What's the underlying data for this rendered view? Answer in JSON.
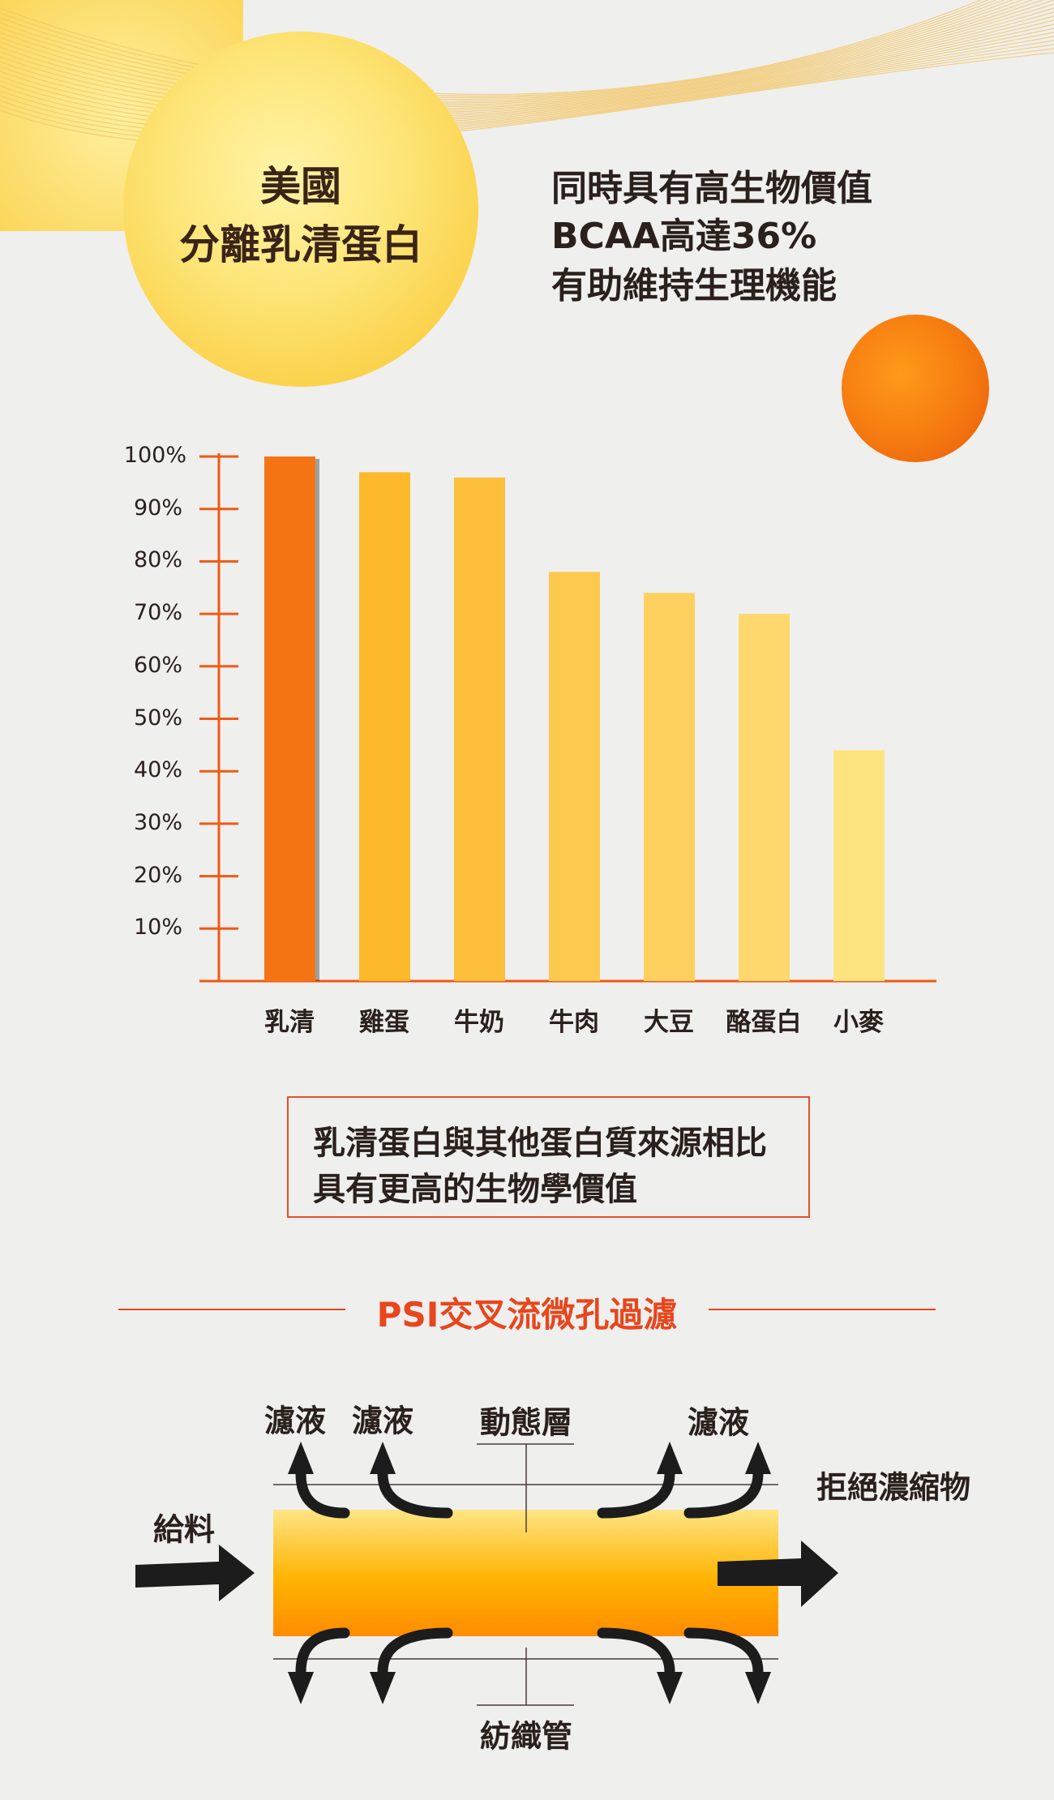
{
  "header": {
    "title_lines": [
      "美國",
      "分離乳清蛋白"
    ],
    "claims": [
      "同時具有高生物價值",
      "BCAA高達36%",
      "有助維持生理機能"
    ]
  },
  "colors": {
    "accent": "#e8461c",
    "whey_bar": "#f47414",
    "text": "#2a201c"
  },
  "chart_data": {
    "type": "bar",
    "title": "",
    "xlabel": "",
    "ylabel": "",
    "categories": [
      "乳清",
      "雞蛋",
      "牛奶",
      "牛肉",
      "大豆",
      "酪蛋白",
      "小麥"
    ],
    "values": [
      100,
      97,
      96,
      78,
      74,
      70,
      44
    ],
    "bar_colors": [
      "#f47414",
      "#fdb92a",
      "#fdbf3c",
      "#fec94f",
      "#fed05f",
      "#fed86c",
      "#fee381"
    ],
    "ylim": [
      0,
      100
    ],
    "yticks": [
      "10%",
      "20%",
      "30%",
      "40%",
      "50%",
      "60%",
      "70%",
      "80%",
      "90%",
      "100%"
    ],
    "grid": false
  },
  "note": {
    "lines": [
      "乳清蛋白與其他蛋白質來源相比",
      "具有更高的生物學價值"
    ]
  },
  "section": {
    "title": "PSI交叉流微孔過濾"
  },
  "diagram": {
    "filtrate_1": "濾液",
    "filtrate_2": "濾液",
    "dynamic_layer": "動態層",
    "filtrate_3": "濾液",
    "retentate": "拒絕濃縮物",
    "feed": "給料",
    "tube": "紡織管"
  }
}
